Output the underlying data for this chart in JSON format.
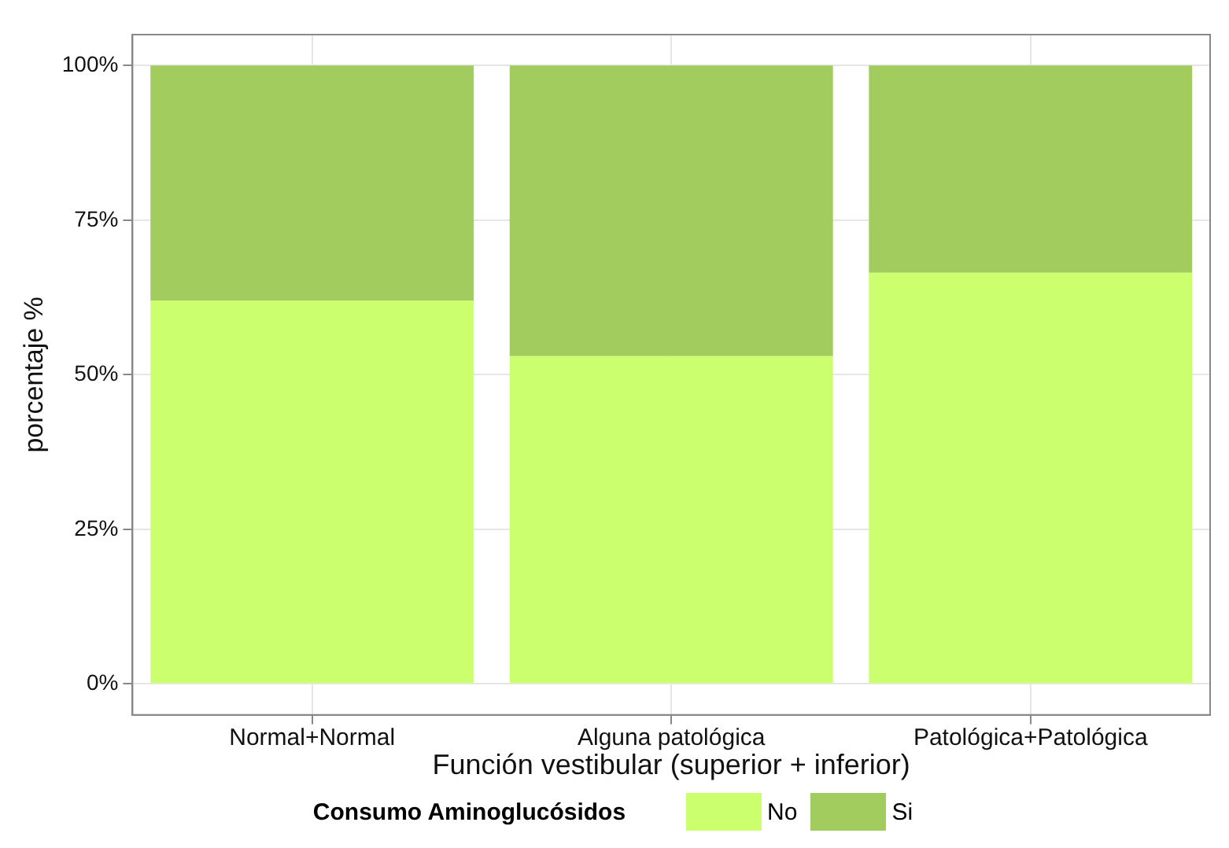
{
  "chart_data": {
    "type": "bar",
    "stacked": true,
    "xlabel": "Función vestibular (superior + inferior)",
    "ylabel": "porcentaje %",
    "legend_title": "Consumo Aminoglucósidos",
    "legend": "bottom",
    "grid": true,
    "categories": [
      "Normal+Normal",
      "Alguna patológica",
      "Patológica+Patológica"
    ],
    "series": [
      {
        "name": "No",
        "color": "#ccff6e",
        "values": [
          62,
          53,
          66.5
        ]
      },
      {
        "name": "Si",
        "color": "#a3cc5e",
        "values": [
          38,
          47,
          33.5
        ]
      }
    ],
    "ylim": [
      -5,
      105
    ],
    "yticks": [
      {
        "value": 0,
        "label": "0%"
      },
      {
        "value": 25,
        "label": "25%"
      },
      {
        "value": 50,
        "label": "50%"
      },
      {
        "value": 75,
        "label": "75%"
      },
      {
        "value": 100,
        "label": "100%"
      }
    ]
  }
}
